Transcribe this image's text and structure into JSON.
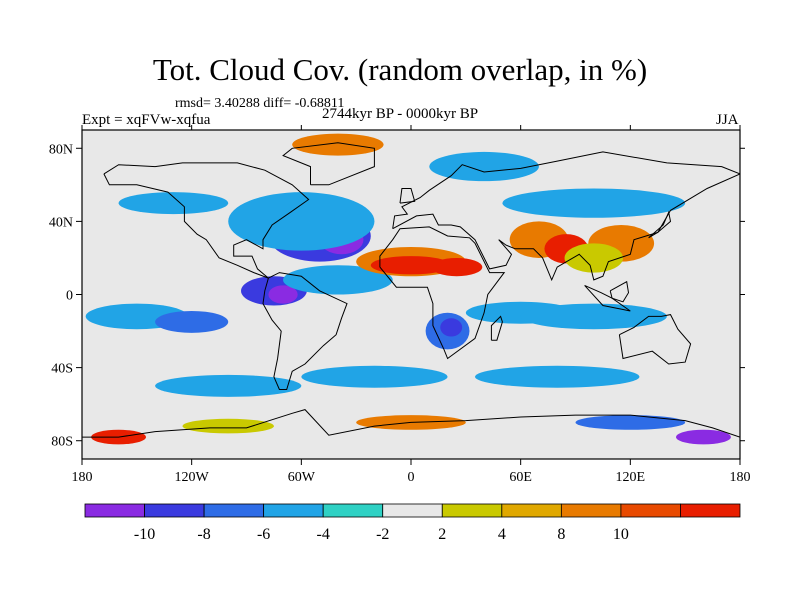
{
  "title": "Tot. Cloud Cov. (random overlap, in %)",
  "stats": "rmsd= 3.40288 diff= -0.68811",
  "experiment": "Expt = xqFVw-xqfua",
  "period": "2744kyr BP - 0000kyr BP",
  "season": "JJA",
  "map": {
    "lon_range": [
      -180,
      180
    ],
    "lat_range": [
      -90,
      90
    ],
    "lon_ticks": [
      {
        "value": -180,
        "label": "180"
      },
      {
        "value": -120,
        "label": "120W"
      },
      {
        "value": -60,
        "label": "60W"
      },
      {
        "value": 0,
        "label": "0"
      },
      {
        "value": 60,
        "label": "60E"
      },
      {
        "value": 120,
        "label": "120E"
      },
      {
        "value": 180,
        "label": "180"
      }
    ],
    "lat_ticks": [
      {
        "value": 80,
        "label": "80N"
      },
      {
        "value": 40,
        "label": "40N"
      },
      {
        "value": 0,
        "label": "0"
      },
      {
        "value": -40,
        "label": "40S"
      },
      {
        "value": -80,
        "label": "80S"
      }
    ],
    "background_color": "#e8e8e8",
    "anomalies": [
      {
        "lon": -50,
        "lat": 32,
        "rx": 28,
        "ry": 14,
        "level": -8
      },
      {
        "lon": -38,
        "lat": 30,
        "rx": 12,
        "ry": 8,
        "level": -10
      },
      {
        "lon": -60,
        "lat": 40,
        "rx": 40,
        "ry": 16,
        "level": -4
      },
      {
        "lon": -75,
        "lat": 2,
        "rx": 18,
        "ry": 8,
        "level": -8
      },
      {
        "lon": -70,
        "lat": 0,
        "rx": 8,
        "ry": 5,
        "level": -10
      },
      {
        "lon": -40,
        "lat": 8,
        "rx": 30,
        "ry": 8,
        "level": -4
      },
      {
        "lon": -150,
        "lat": -12,
        "rx": 28,
        "ry": 7,
        "level": -4
      },
      {
        "lon": -120,
        "lat": -15,
        "rx": 20,
        "ry": 6,
        "level": -6
      },
      {
        "lon": 0,
        "lat": 18,
        "rx": 30,
        "ry": 8,
        "level": 8
      },
      {
        "lon": 0,
        "lat": 16,
        "rx": 22,
        "ry": 5,
        "level": 10
      },
      {
        "lon": 25,
        "lat": 15,
        "rx": 14,
        "ry": 5,
        "level": 10
      },
      {
        "lon": 70,
        "lat": 30,
        "rx": 16,
        "ry": 10,
        "level": 8
      },
      {
        "lon": 85,
        "lat": 25,
        "rx": 12,
        "ry": 8,
        "level": 10
      },
      {
        "lon": 115,
        "lat": 28,
        "rx": 18,
        "ry": 10,
        "level": 8
      },
      {
        "lon": 100,
        "lat": 20,
        "rx": 16,
        "ry": 8,
        "level": 4
      },
      {
        "lon": 100,
        "lat": 50,
        "rx": 50,
        "ry": 8,
        "level": -4
      },
      {
        "lon": -130,
        "lat": 50,
        "rx": 30,
        "ry": 6,
        "level": -4
      },
      {
        "lon": 20,
        "lat": -20,
        "rx": 12,
        "ry": 10,
        "level": -6
      },
      {
        "lon": 22,
        "lat": -18,
        "rx": 6,
        "ry": 5,
        "level": -8
      },
      {
        "lon": 60,
        "lat": -10,
        "rx": 30,
        "ry": 6,
        "level": -4
      },
      {
        "lon": 100,
        "lat": -12,
        "rx": 40,
        "ry": 7,
        "level": -4
      },
      {
        "lon": -100,
        "lat": -50,
        "rx": 40,
        "ry": 6,
        "level": -4
      },
      {
        "lon": -20,
        "lat": -45,
        "rx": 40,
        "ry": 6,
        "level": -4
      },
      {
        "lon": 80,
        "lat": -45,
        "rx": 45,
        "ry": 6,
        "level": -4
      },
      {
        "lon": -40,
        "lat": 82,
        "rx": 25,
        "ry": 6,
        "level": 8
      },
      {
        "lon": 40,
        "lat": 70,
        "rx": 30,
        "ry": 8,
        "level": -4
      },
      {
        "lon": -100,
        "lat": -72,
        "rx": 25,
        "ry": 4,
        "level": 4
      },
      {
        "lon": 0,
        "lat": -70,
        "rx": 30,
        "ry": 4,
        "level": 8
      },
      {
        "lon": 120,
        "lat": -70,
        "rx": 30,
        "ry": 4,
        "level": -6
      },
      {
        "lon": -160,
        "lat": -78,
        "rx": 15,
        "ry": 4,
        "level": 10
      },
      {
        "lon": 160,
        "lat": -78,
        "rx": 15,
        "ry": 4,
        "level": -10
      }
    ]
  },
  "colorbar": {
    "colors": [
      "#8a2be2",
      "#3a3adf",
      "#2e6ce6",
      "#21a4e6",
      "#2fd1c4",
      "#e8e8e8",
      "#c9c900",
      "#e0a800",
      "#e87a00",
      "#e84a00",
      "#e81e00"
    ],
    "labels": [
      "-10",
      "-8",
      "-6",
      "-4",
      "-2",
      "2",
      "4",
      "8",
      "10"
    ]
  }
}
